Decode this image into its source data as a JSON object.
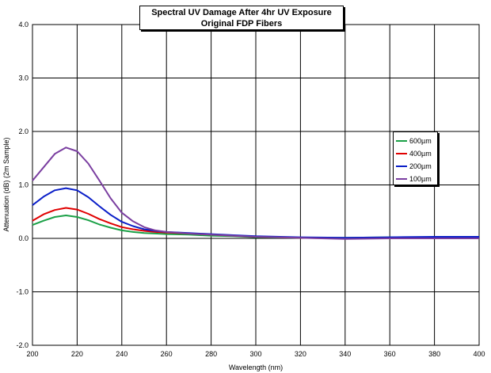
{
  "chart_data": {
    "type": "line",
    "title": "Spectral UV Damage After 4hr UV Exposure",
    "subtitle": "Original FDP Fibers",
    "xlabel": "Wavelength (nm)",
    "ylabel": "Attenuation (dB) (2m Sample)",
    "xlim": [
      200,
      400
    ],
    "ylim": [
      -2.0,
      4.0
    ],
    "x_ticks": [
      "200",
      "220",
      "240",
      "260",
      "280",
      "300",
      "320",
      "340",
      "360",
      "380",
      "400"
    ],
    "y_ticks": [
      "-2.0",
      "-1.0",
      "0.0",
      "1.0",
      "2.0",
      "3.0",
      "4.0"
    ],
    "grid": true,
    "legend_position": "right",
    "series": [
      {
        "name": "600µm",
        "color": "#1aa046",
        "x": [
          200,
          205,
          210,
          215,
          220,
          225,
          230,
          235,
          240,
          245,
          250,
          255,
          260,
          270,
          280,
          290,
          300,
          320,
          340,
          360,
          380,
          400
        ],
        "values": [
          0.25,
          0.33,
          0.4,
          0.43,
          0.4,
          0.34,
          0.26,
          0.2,
          0.15,
          0.12,
          0.1,
          0.09,
          0.08,
          0.07,
          0.05,
          0.04,
          0.02,
          0.01,
          0.01,
          0.02,
          0.02,
          0.02
        ]
      },
      {
        "name": "400µm",
        "color": "#e00000",
        "x": [
          200,
          205,
          210,
          215,
          220,
          225,
          230,
          235,
          240,
          245,
          250,
          255,
          260,
          270,
          280,
          290,
          300,
          320,
          340,
          360,
          380,
          400
        ],
        "values": [
          0.33,
          0.45,
          0.53,
          0.57,
          0.54,
          0.46,
          0.36,
          0.28,
          0.21,
          0.17,
          0.14,
          0.12,
          0.11,
          0.09,
          0.07,
          0.05,
          0.03,
          0.01,
          0.0,
          0.01,
          0.01,
          0.01
        ]
      },
      {
        "name": "200µm",
        "color": "#0a1ec8",
        "x": [
          200,
          205,
          210,
          215,
          220,
          225,
          230,
          235,
          240,
          245,
          250,
          255,
          260,
          270,
          280,
          290,
          300,
          320,
          340,
          360,
          380,
          400
        ],
        "values": [
          0.62,
          0.78,
          0.9,
          0.94,
          0.9,
          0.77,
          0.6,
          0.44,
          0.31,
          0.23,
          0.17,
          0.14,
          0.12,
          0.1,
          0.08,
          0.06,
          0.04,
          0.02,
          0.01,
          0.02,
          0.03,
          0.03
        ]
      },
      {
        "name": "100µm",
        "color": "#7a3ea0",
        "x": [
          200,
          205,
          210,
          215,
          220,
          225,
          230,
          235,
          240,
          245,
          250,
          255,
          260,
          270,
          280,
          290,
          300,
          320,
          340,
          360,
          380,
          400
        ],
        "values": [
          1.08,
          1.33,
          1.58,
          1.7,
          1.63,
          1.4,
          1.08,
          0.75,
          0.48,
          0.32,
          0.21,
          0.15,
          0.12,
          0.09,
          0.07,
          0.05,
          0.03,
          0.01,
          -0.01,
          0.0,
          0.0,
          0.0
        ]
      }
    ]
  }
}
